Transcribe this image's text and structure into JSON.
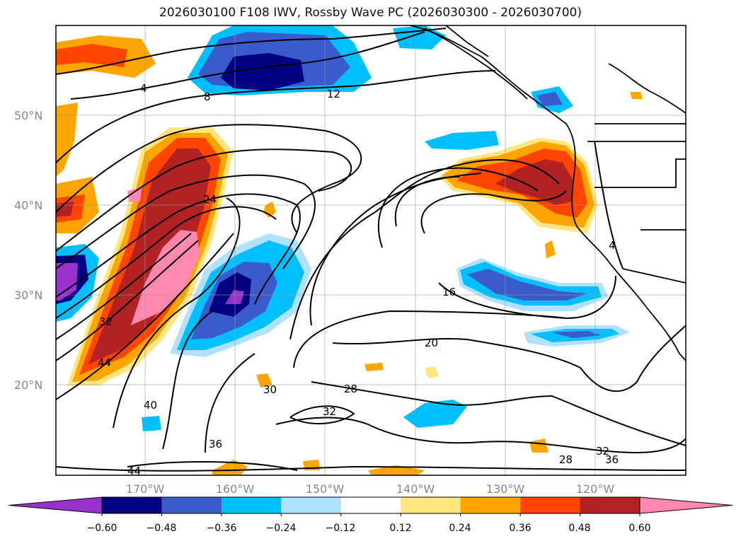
{
  "title": "2026030100 F108 IWV, Rossby Wave PC (2026030300 - 2026030700)",
  "lat_labels": [
    "50°N",
    "40°N",
    "30°N",
    "20°N"
  ],
  "lon_labels": [
    "170°W",
    "160°W",
    "150°W",
    "140°W",
    "130°W",
    "120°W"
  ],
  "contour_labels": [
    "4",
    "8",
    "12",
    "24",
    "32",
    "44",
    "40",
    "36",
    "44",
    "30",
    "28",
    "32",
    "20",
    "16",
    "4",
    "28",
    "32",
    "36"
  ],
  "colorbar": {
    "ticks": [
      "−0.60",
      "−0.48",
      "−0.36",
      "−0.24",
      "−0.12",
      "0.12",
      "0.24",
      "0.36",
      "0.48",
      "0.60"
    ],
    "colors": [
      "#9932cc",
      "#000080",
      "#3b5bcd",
      "#00bfff",
      "#b0e2ff",
      "#ffffff",
      "#ffe680",
      "#ffa500",
      "#ff4500",
      "#b22222",
      "#ff88b0"
    ]
  },
  "chart_data": {
    "type": "heatmap",
    "title": "2026030100 F108 IWV, Rossby Wave PC (2026030300 - 2026030700)",
    "x_ticks": [
      "170°W",
      "160°W",
      "150°W",
      "140°W",
      "130°W",
      "120°W"
    ],
    "y_ticks": [
      "50°N",
      "40°N",
      "30°N",
      "20°N"
    ],
    "xlim": [
      -180,
      -110
    ],
    "ylim": [
      10,
      60
    ],
    "contour_levels": [
      4,
      8,
      12,
      16,
      20,
      24,
      28,
      32,
      36,
      40,
      44
    ],
    "color_levels": [
      -0.6,
      -0.48,
      -0.36,
      -0.24,
      -0.12,
      0.12,
      0.24,
      0.36,
      0.48,
      0.6
    ],
    "grid": true
  }
}
